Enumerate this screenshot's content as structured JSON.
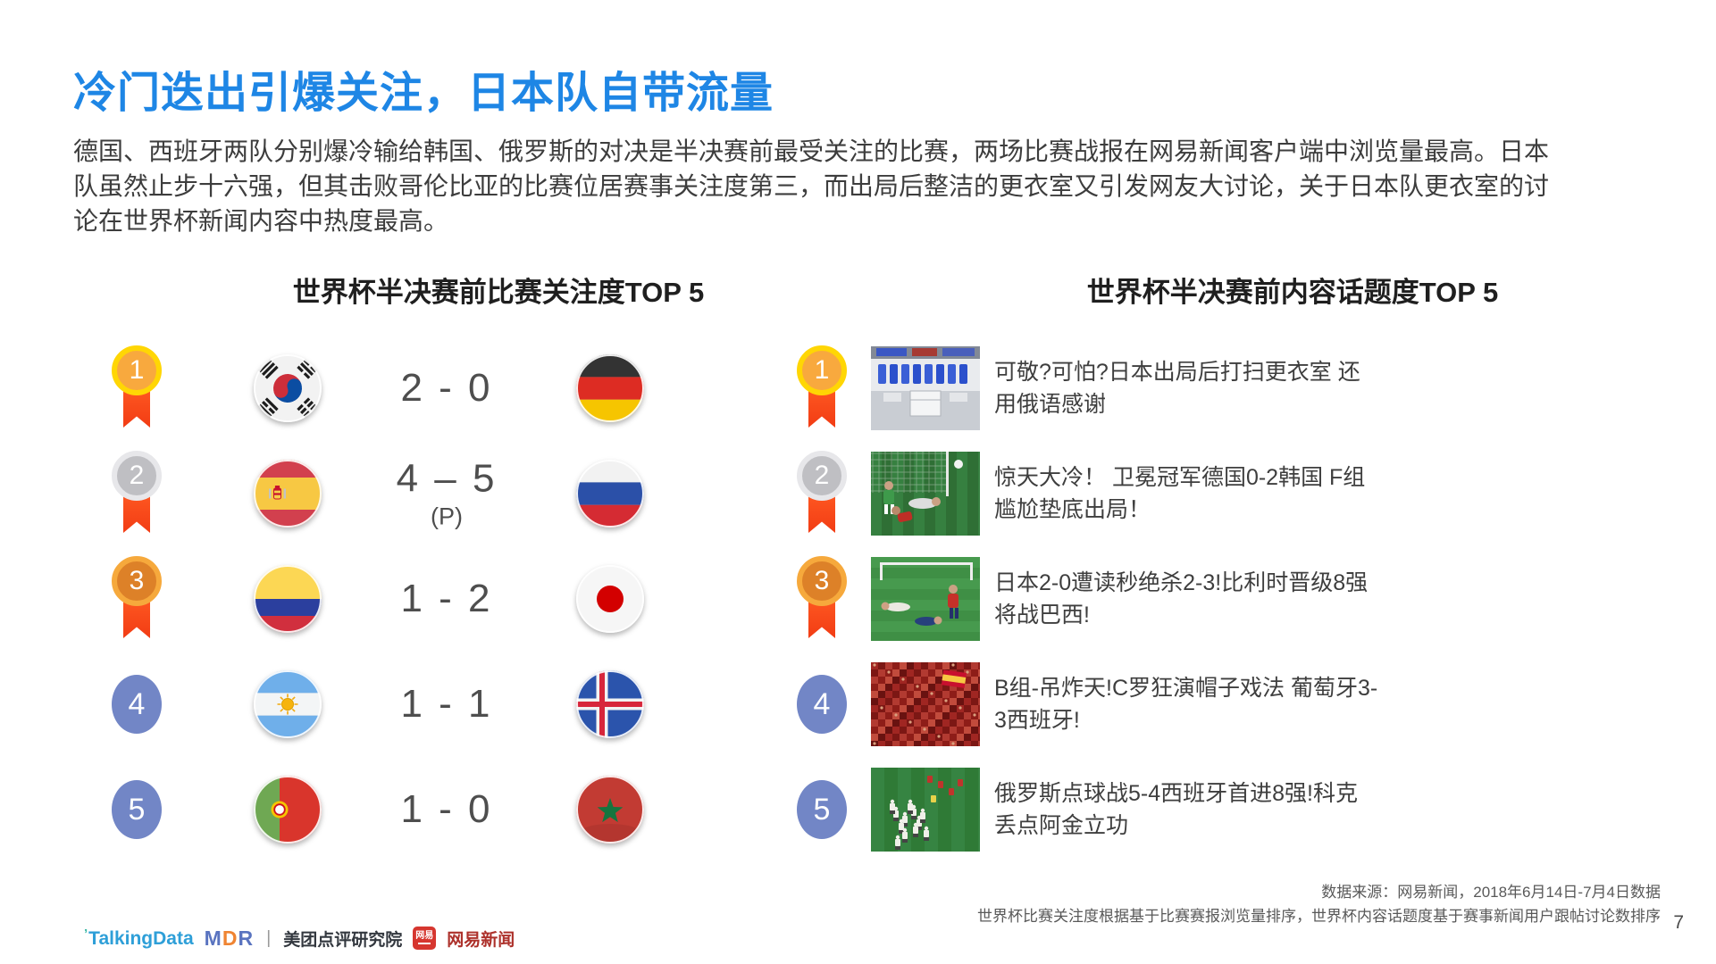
{
  "slide": {
    "title": "冷门迭出引爆关注，日本队自带流量",
    "body": "德国、西班牙两队分别爆冷输给韩国、俄罗斯的对决是半决赛前最受关注的比赛，两场比赛战报在网易新闻客户端中浏览量最高。日本队虽然止步十六强，但其击败哥伦比亚的比赛位居赛事关注度第三，而出局后整洁的更衣室又引发网友大讨论，关于日本队更衣室的讨论在世界杯新闻内容中热度最高。",
    "page_number": "7"
  },
  "match_panel": {
    "title": "世界杯半决赛前比赛关注度TOP 5",
    "rows": [
      {
        "rank": "1",
        "medal": "gold",
        "team1_flag": "south-korea",
        "score": "2 - 0",
        "note": "",
        "team2_flag": "germany"
      },
      {
        "rank": "2",
        "medal": "silver",
        "team1_flag": "spain",
        "score": "4 – 5",
        "note": "(P)",
        "team2_flag": "russia"
      },
      {
        "rank": "3",
        "medal": "bronze",
        "team1_flag": "colombia",
        "score": "1 - 2",
        "note": "",
        "team2_flag": "japan"
      },
      {
        "rank": "4",
        "medal": "plain",
        "team1_flag": "argentina",
        "score": "1 - 1",
        "note": "",
        "team2_flag": "iceland"
      },
      {
        "rank": "5",
        "medal": "plain",
        "team1_flag": "portugal",
        "score": "1 - 0",
        "note": "",
        "team2_flag": "morocco"
      }
    ]
  },
  "topic_panel": {
    "title": "世界杯半决赛前内容话题度TOP 5",
    "rows": [
      {
        "rank": "1",
        "medal": "gold",
        "thumbnail": "locker-room",
        "headline": "可敬?可怕?日本出局后打扫更衣室 还用俄语感谢"
      },
      {
        "rank": "2",
        "medal": "silver",
        "thumbnail": "goal-scene",
        "headline": "惊天大冷！ 卫冕冠军德国0-2韩国 F组尴尬垫底出局！"
      },
      {
        "rank": "3",
        "medal": "bronze",
        "thumbnail": "players-down",
        "headline": "日本2-0遭读秒绝杀2-3!比利时晋级8强将战巴西!"
      },
      {
        "rank": "4",
        "medal": "plain",
        "thumbnail": "red-crowd",
        "headline": "B组-吊炸天!C罗狂演帽子戏法 葡萄牙3-3西班牙!"
      },
      {
        "rank": "5",
        "medal": "plain",
        "thumbnail": "celebration",
        "headline": "俄罗斯点球战5-4西班牙首进8强!科克丢点阿金立功"
      }
    ]
  },
  "footer": {
    "source_line1": "数据来源：网易新闻，2018年6月14日-7月4日数据",
    "source_line2": "世界杯比赛关注度根据基于比赛赛报浏览量排序，世界杯内容话题度基于赛事新闻用户跟帖讨论数排序",
    "logos": {
      "talkingdata": "TalkingData",
      "mdr": "MDR",
      "meituan": "美团点评研究院",
      "netease_badge": "网易",
      "netease": "网易新闻"
    }
  },
  "colors": {
    "accent_blue": "#1e86e5",
    "rank_blue": "#7286c6",
    "medal_gold": "#ffd604",
    "medal_silver": "#e7e7ea",
    "medal_bronze": "#f6a93c",
    "ribbon_red": "#f23c14"
  }
}
